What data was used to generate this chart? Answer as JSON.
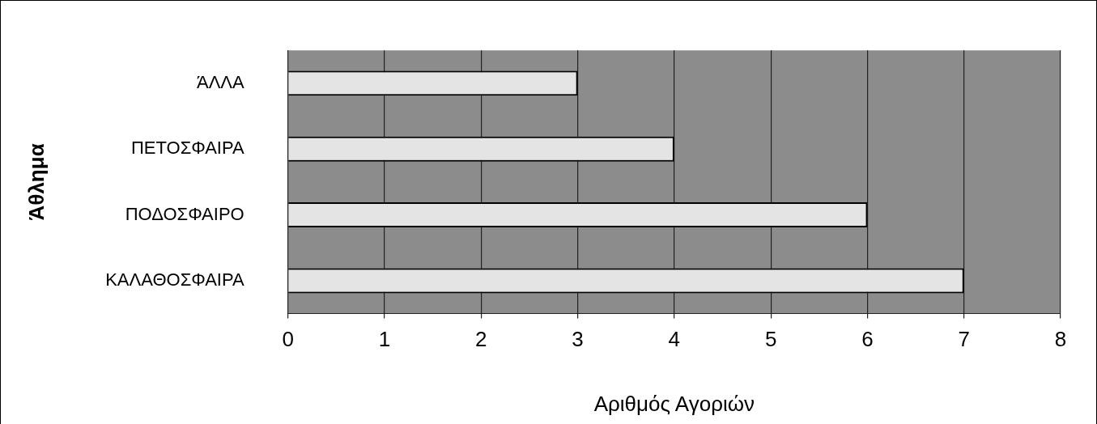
{
  "chart_data": {
    "type": "bar",
    "orientation": "horizontal",
    "xlabel": "Αριθμός Αγοριών",
    "ylabel": "Άθλημα",
    "categories": [
      "ΆΛΛΑ",
      "ΠΕΤΟΣΦΑΙΡΑ",
      "ΠΟΔΟΣΦΑΙΡΟ",
      "ΚΑΛΑΘΟΣΦΑΙΡΑ"
    ],
    "values": [
      3,
      4,
      6,
      7
    ],
    "color": "#e4e4e4",
    "xlim": [
      0,
      8
    ],
    "xticks": [
      0,
      1,
      2,
      3,
      4,
      5,
      6,
      7,
      8
    ],
    "grid": "x"
  }
}
